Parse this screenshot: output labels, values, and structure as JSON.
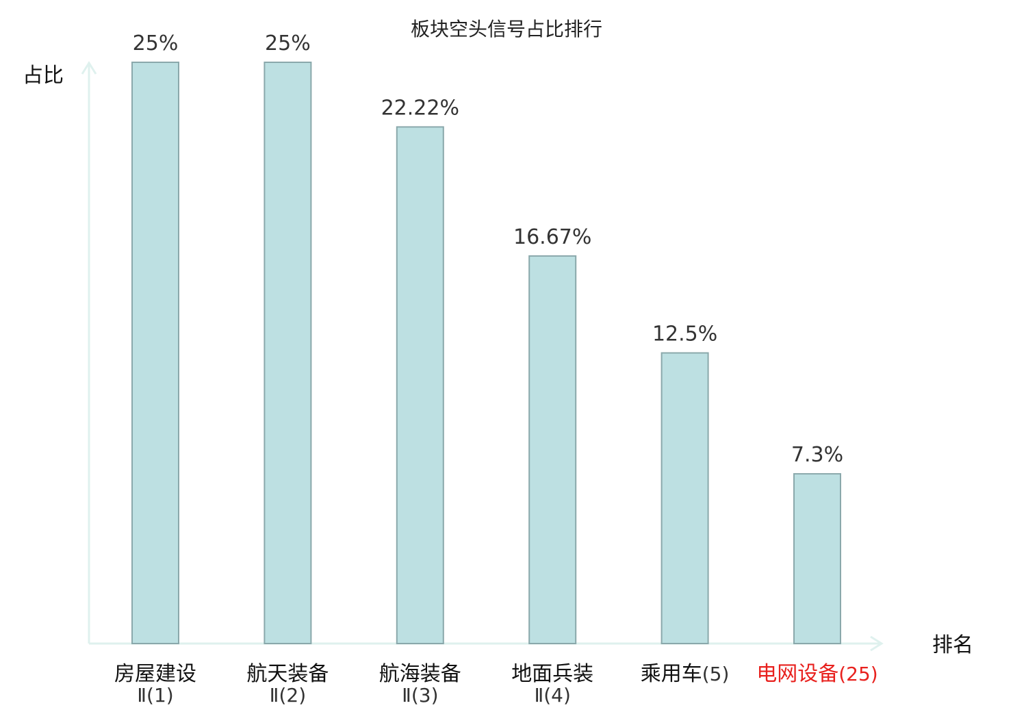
{
  "chart_data": {
    "type": "bar",
    "title": "板块空头信号占比排行",
    "ylabel": "占比",
    "xlabel": "排名",
    "ylim": [
      0,
      25
    ],
    "grid": false,
    "categories": [
      {
        "name": "房屋建设",
        "rank": "Ⅱ(1)"
      },
      {
        "name": "航天装备",
        "rank": "Ⅱ(2)"
      },
      {
        "name": "航海装备",
        "rank": "Ⅱ(3)"
      },
      {
        "name": "地面兵装",
        "rank": "Ⅱ(4)"
      },
      {
        "name": "乘用车",
        "rank": "(5)"
      },
      {
        "name": "电网设备",
        "rank": "(25)"
      }
    ],
    "values": [
      25,
      25,
      22.22,
      16.67,
      12.5,
      7.3
    ],
    "value_labels": [
      "25%",
      "25%",
      "22.22%",
      "16.67%",
      "12.5%",
      "7.3%"
    ],
    "highlight_index": 5,
    "colors": {
      "bar_fill": "#bde0e2",
      "bar_stroke": "#8aa8ab",
      "axis": "#dff1ee",
      "highlight": "#e8211e",
      "text": "#111111",
      "value_text": "#333333"
    }
  }
}
